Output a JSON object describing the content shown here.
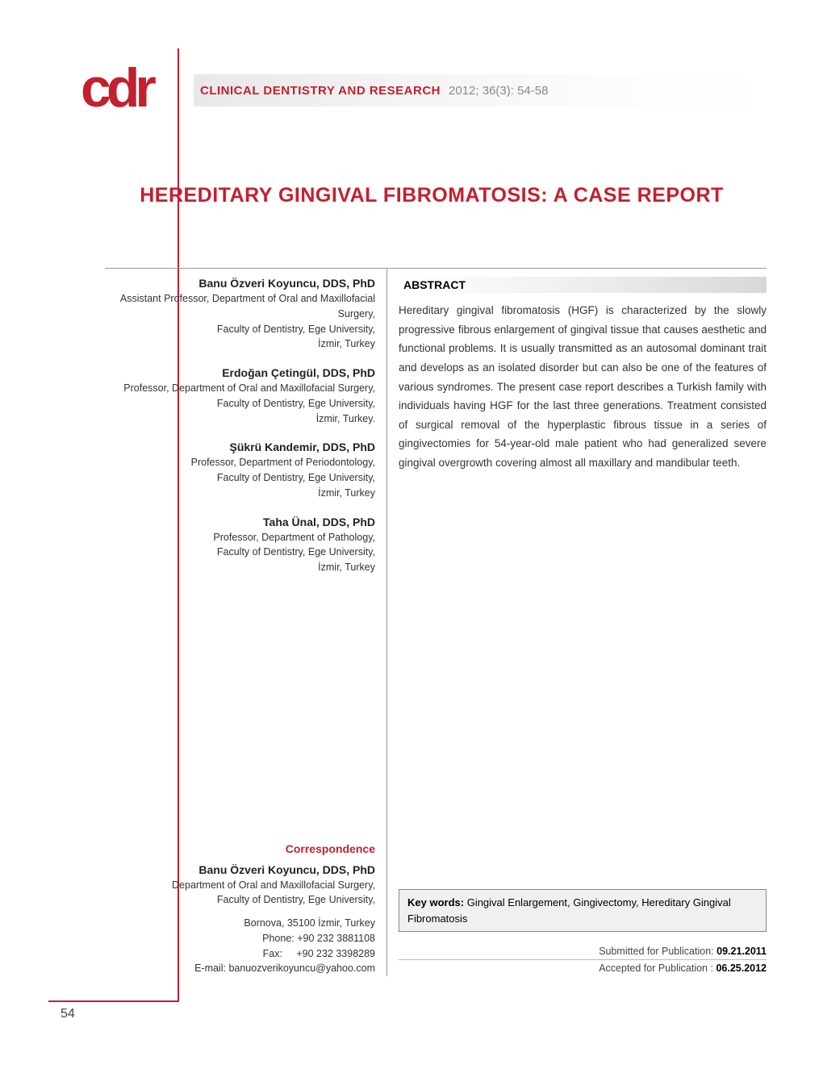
{
  "journal": {
    "logo_text": "cdr",
    "name": "CLINICAL DENTISTRY AND RESEARCH",
    "citation": "2012; 36(3): 54-58"
  },
  "article": {
    "title": "HEREDITARY GINGIVAL FIBROMATOSIS: A CASE REPORT",
    "page_number": "54"
  },
  "authors": [
    {
      "name": "Banu Özveri Koyuncu, DDS, PhD",
      "affil": "Assistant Professor, Department of Oral and Maxillofacial Surgery,\nFaculty of Dentistry, Ege University,\nİzmir, Turkey"
    },
    {
      "name": "Erdoğan Çetingül, DDS, PhD",
      "affil": "Professor, Department of Oral and Maxillofacial Surgery,\nFaculty of Dentistry, Ege University,\nİzmir, Turkey."
    },
    {
      "name": "Şükrü Kandemir, DDS, PhD",
      "affil": "Professor, Department of Periodontology,\nFaculty of Dentistry, Ege University,\nİzmir, Turkey"
    },
    {
      "name": "Taha Ünal, DDS, PhD",
      "affil": "Professor, Department of Pathology,\nFaculty of Dentistry, Ege University,\nİzmir, Turkey"
    }
  ],
  "correspondence": {
    "heading": "Correspondence",
    "name": "Banu Özveri Koyuncu, DDS, PhD",
    "affil": "Department of Oral and Maxillofacial Surgery,\nFaculty of Dentistry, Ege University,",
    "address": "Bornova, 35100  İzmir, Turkey",
    "phone_label": "Phone:",
    "phone": "+90 232 3881108",
    "fax_label": "Fax:",
    "fax": "+90 232 3398289",
    "email_label": "E-mail:",
    "email": "banuozverikoyuncu@yahoo.com"
  },
  "abstract": {
    "heading": "ABSTRACT",
    "text": "Hereditary gingival fibromatosis (HGF) is characterized by the slowly progressive fibrous enlargement of gingival tissue that causes aesthetic and functional problems. It is usually transmitted as an autosomal dominant trait and develops as an isolated disorder but can also be one of the features of various syndromes. The present case report describes a Turkish family with individuals having HGF for the last three generations. Treatment consisted of surgical removal of the hyperplastic fibrous tissue in a series of gingivectomies for 54-year-old male patient who had generalized severe gingival overgrowth covering almost all maxillary and mandibular teeth."
  },
  "keywords": {
    "label": "Key words:",
    "text": "Gingival Enlargement, Gingivectomy, Hereditary Gingival Fibromatosis"
  },
  "publication": {
    "submitted_label": "Submitted for Publication:",
    "submitted_date": "09.21.2011",
    "accepted_label": "Accepted for Publication  :",
    "accepted_date": "06.25.2012"
  },
  "colors": {
    "brand": "#c2202f",
    "text_dark": "#222222",
    "text_mid": "#444444",
    "text_light": "#888888",
    "rule": "#999999",
    "box_border": "#888888",
    "box_bg": "#f0f0f0",
    "gradient_start": "#e8e8e8",
    "gradient_end": "#ffffff"
  }
}
